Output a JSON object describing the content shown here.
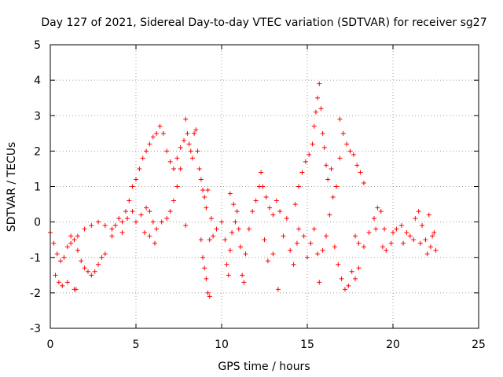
{
  "chart_data": {
    "type": "scatter",
    "title": "Day 127 of 2021, Sidereal Day-to-day VTEC variation (SDTVAR) for receiver sg27",
    "xlabel": "GPS time / hours",
    "ylabel": "SDTVAR / TECUs",
    "xlim": [
      0,
      25
    ],
    "ylim": [
      -3,
      5
    ],
    "xticks": [
      0,
      5,
      10,
      15,
      20,
      25
    ],
    "yticks": [
      -3,
      -2,
      -1,
      0,
      1,
      2,
      3,
      4,
      5
    ],
    "grid": true,
    "marker": "+",
    "color": "#ff0000",
    "series": [
      {
        "name": "SDTVAR",
        "points": [
          [
            0.0,
            -0.3
          ],
          [
            0.2,
            -0.6
          ],
          [
            0.4,
            -0.9
          ],
          [
            0.6,
            -1.1
          ],
          [
            0.8,
            -1.0
          ],
          [
            1.0,
            -0.7
          ],
          [
            1.2,
            -0.4
          ],
          [
            1.4,
            -0.5
          ],
          [
            1.6,
            -0.8
          ],
          [
            1.8,
            -1.1
          ],
          [
            2.0,
            -1.3
          ],
          [
            2.2,
            -1.4
          ],
          [
            2.4,
            -1.5
          ],
          [
            2.6,
            -1.4
          ],
          [
            2.8,
            -1.2
          ],
          [
            3.0,
            -1.0
          ],
          [
            3.2,
            -0.9
          ],
          [
            0.3,
            -1.5
          ],
          [
            0.5,
            -1.7
          ],
          [
            0.7,
            -1.8
          ],
          [
            1.0,
            -1.7
          ],
          [
            1.4,
            -1.9
          ],
          [
            1.5,
            -1.9
          ],
          [
            1.2,
            -0.6
          ],
          [
            1.6,
            -0.4
          ],
          [
            2.0,
            -0.2
          ],
          [
            2.4,
            -0.1
          ],
          [
            2.8,
            0.0
          ],
          [
            3.2,
            -0.1
          ],
          [
            3.6,
            -0.2
          ],
          [
            3.6,
            -0.4
          ],
          [
            3.8,
            -0.1
          ],
          [
            4.0,
            0.1
          ],
          [
            4.2,
            0.0
          ],
          [
            4.4,
            0.3
          ],
          [
            4.6,
            0.6
          ],
          [
            4.8,
            1.0
          ],
          [
            5.0,
            1.2
          ],
          [
            5.2,
            1.5
          ],
          [
            5.4,
            1.8
          ],
          [
            5.6,
            2.0
          ],
          [
            5.8,
            2.2
          ],
          [
            6.0,
            2.4
          ],
          [
            6.2,
            2.5
          ],
          [
            6.4,
            2.7
          ],
          [
            6.6,
            2.5
          ],
          [
            6.8,
            2.0
          ],
          [
            7.0,
            1.7
          ],
          [
            7.2,
            1.5
          ],
          [
            7.4,
            1.8
          ],
          [
            7.6,
            2.1
          ],
          [
            7.8,
            2.3
          ],
          [
            4.2,
            -0.3
          ],
          [
            4.5,
            0.1
          ],
          [
            4.8,
            0.3
          ],
          [
            5.0,
            0.0
          ],
          [
            5.3,
            0.2
          ],
          [
            5.6,
            0.4
          ],
          [
            5.8,
            0.3
          ],
          [
            6.0,
            0.0
          ],
          [
            6.2,
            -0.2
          ],
          [
            6.5,
            0.0
          ],
          [
            6.8,
            0.1
          ],
          [
            7.0,
            0.3
          ],
          [
            7.2,
            0.6
          ],
          [
            7.4,
            1.0
          ],
          [
            7.6,
            1.5
          ],
          [
            5.5,
            -0.3
          ],
          [
            5.8,
            -0.4
          ],
          [
            6.1,
            -0.6
          ],
          [
            7.9,
            2.9
          ],
          [
            8.0,
            2.5
          ],
          [
            8.1,
            2.2
          ],
          [
            8.2,
            2.0
          ],
          [
            8.3,
            1.8
          ],
          [
            8.4,
            2.5
          ],
          [
            8.5,
            2.6
          ],
          [
            8.6,
            2.0
          ],
          [
            8.7,
            1.5
          ],
          [
            8.8,
            1.2
          ],
          [
            8.9,
            0.9
          ],
          [
            9.0,
            0.7
          ],
          [
            9.1,
            0.4
          ],
          [
            9.2,
            0.9
          ],
          [
            7.9,
            -0.1
          ],
          [
            8.8,
            -0.5
          ],
          [
            8.9,
            -1.0
          ],
          [
            9.0,
            -1.3
          ],
          [
            9.1,
            -1.6
          ],
          [
            9.2,
            -2.0
          ],
          [
            9.3,
            -2.1
          ],
          [
            9.3,
            -0.5
          ],
          [
            9.4,
            0.1
          ],
          [
            9.5,
            -0.4
          ],
          [
            9.7,
            -0.2
          ],
          [
            10.0,
            0.0
          ],
          [
            10.2,
            -0.5
          ],
          [
            10.3,
            -1.2
          ],
          [
            10.4,
            -1.5
          ],
          [
            10.5,
            -0.8
          ],
          [
            10.6,
            -0.3
          ],
          [
            10.8,
            0.0
          ],
          [
            10.9,
            0.3
          ],
          [
            11.0,
            -0.2
          ],
          [
            11.1,
            -0.7
          ],
          [
            11.2,
            -1.5
          ],
          [
            11.3,
            -1.7
          ],
          [
            11.4,
            -0.9
          ],
          [
            11.6,
            -0.2
          ],
          [
            11.8,
            0.3
          ],
          [
            12.0,
            0.6
          ],
          [
            12.2,
            1.0
          ],
          [
            12.3,
            1.4
          ],
          [
            12.4,
            1.0
          ],
          [
            12.6,
            0.7
          ],
          [
            12.8,
            0.4
          ],
          [
            13.0,
            0.2
          ],
          [
            13.2,
            0.6
          ],
          [
            13.4,
            0.3
          ],
          [
            10.5,
            0.8
          ],
          [
            10.7,
            0.5
          ],
          [
            12.5,
            -0.5
          ],
          [
            12.7,
            -1.1
          ],
          [
            13.0,
            -0.9
          ],
          [
            13.3,
            -1.9
          ],
          [
            13.6,
            -0.4
          ],
          [
            13.8,
            0.1
          ],
          [
            14.0,
            -0.8
          ],
          [
            14.2,
            -1.2
          ],
          [
            14.4,
            -0.6
          ],
          [
            14.5,
            -0.2
          ],
          [
            14.3,
            0.5
          ],
          [
            14.5,
            1.0
          ],
          [
            14.7,
            1.4
          ],
          [
            14.9,
            1.7
          ],
          [
            15.1,
            1.9
          ],
          [
            15.3,
            2.2
          ],
          [
            15.4,
            2.7
          ],
          [
            15.5,
            3.1
          ],
          [
            15.6,
            3.5
          ],
          [
            15.7,
            3.9
          ],
          [
            15.8,
            3.2
          ],
          [
            15.9,
            2.5
          ],
          [
            16.0,
            2.1
          ],
          [
            16.1,
            1.6
          ],
          [
            16.2,
            1.2
          ],
          [
            16.4,
            1.5
          ],
          [
            14.8,
            -0.4
          ],
          [
            15.0,
            -1.0
          ],
          [
            15.2,
            -0.6
          ],
          [
            15.4,
            -0.2
          ],
          [
            15.6,
            -0.9
          ],
          [
            15.7,
            -1.7
          ],
          [
            15.9,
            -0.8
          ],
          [
            16.1,
            -0.4
          ],
          [
            16.3,
            0.2
          ],
          [
            16.5,
            0.7
          ],
          [
            16.7,
            1.0
          ],
          [
            16.9,
            1.8
          ],
          [
            16.6,
            -0.7
          ],
          [
            16.8,
            -1.2
          ],
          [
            17.0,
            -1.6
          ],
          [
            17.2,
            -1.9
          ],
          [
            17.4,
            -1.8
          ],
          [
            17.6,
            -1.4
          ],
          [
            17.8,
            -1.6
          ],
          [
            18.0,
            -1.3
          ],
          [
            16.9,
            2.9
          ],
          [
            17.1,
            2.5
          ],
          [
            17.3,
            2.2
          ],
          [
            17.5,
            2.0
          ],
          [
            17.7,
            1.9
          ],
          [
            17.9,
            1.6
          ],
          [
            18.1,
            1.4
          ],
          [
            18.3,
            1.1
          ],
          [
            17.8,
            -0.4
          ],
          [
            18.0,
            -0.6
          ],
          [
            18.3,
            -0.7
          ],
          [
            18.6,
            -0.3
          ],
          [
            18.9,
            0.1
          ],
          [
            19.1,
            0.4
          ],
          [
            19.3,
            0.3
          ],
          [
            19.0,
            -0.2
          ],
          [
            19.4,
            -0.7
          ],
          [
            19.6,
            -0.8
          ],
          [
            19.9,
            -0.6
          ],
          [
            20.2,
            -0.2
          ],
          [
            20.5,
            -0.1
          ],
          [
            20.8,
            -0.3
          ],
          [
            21.0,
            -0.4
          ],
          [
            21.3,
            0.1
          ],
          [
            21.5,
            0.3
          ],
          [
            21.7,
            -0.1
          ],
          [
            21.9,
            -0.5
          ],
          [
            22.0,
            -0.9
          ],
          [
            22.2,
            -0.7
          ],
          [
            22.4,
            -0.3
          ],
          [
            22.5,
            -0.8
          ],
          [
            19.5,
            -0.2
          ],
          [
            20.0,
            -0.3
          ],
          [
            20.6,
            -0.6
          ],
          [
            21.2,
            -0.5
          ],
          [
            21.6,
            -0.6
          ],
          [
            22.1,
            0.2
          ],
          [
            22.3,
            -0.4
          ]
        ]
      }
    ]
  }
}
